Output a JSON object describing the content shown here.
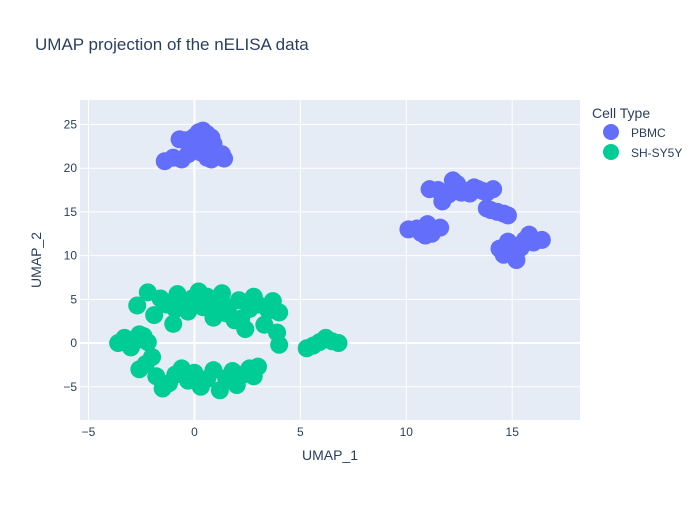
{
  "chart_data": {
    "type": "scatter",
    "title": "UMAP projection of the nELISA data",
    "xlabel": "UMAP_1",
    "ylabel": "UMAP_2",
    "xlim": [
      -5.4,
      18.2
    ],
    "ylim": [
      -8.8,
      27.8
    ],
    "xticks": [
      -5,
      0,
      5,
      10,
      15
    ],
    "yticks": [
      -5,
      0,
      5,
      10,
      15,
      20,
      25
    ],
    "grid": true,
    "legend": {
      "title": "Cell Type",
      "placement": "top-right"
    },
    "series": [
      {
        "name": "PBMC",
        "color": "#636efa",
        "points": [
          [
            -1.4,
            20.8
          ],
          [
            -1.0,
            21.2
          ],
          [
            -0.6,
            21.0
          ],
          [
            -0.3,
            21.6
          ],
          [
            0.0,
            22.0
          ],
          [
            0.3,
            21.8
          ],
          [
            0.6,
            21.2
          ],
          [
            0.8,
            21.0
          ],
          [
            1.0,
            21.4
          ],
          [
            1.3,
            21.6
          ],
          [
            1.4,
            21.1
          ],
          [
            -0.7,
            23.3
          ],
          [
            -0.4,
            23.2
          ],
          [
            -0.2,
            22.6
          ],
          [
            0.0,
            23.6
          ],
          [
            0.2,
            24.1
          ],
          [
            0.4,
            24.3
          ],
          [
            0.6,
            23.9
          ],
          [
            0.8,
            23.5
          ],
          [
            0.9,
            22.8
          ],
          [
            0.5,
            22.3
          ],
          [
            0.2,
            22.8
          ],
          [
            -0.1,
            22.2
          ],
          [
            0.7,
            22.0
          ],
          [
            10.1,
            13.0
          ],
          [
            10.5,
            13.1
          ],
          [
            10.7,
            12.6
          ],
          [
            10.9,
            12.3
          ],
          [
            11.0,
            13.6
          ],
          [
            11.2,
            12.5
          ],
          [
            11.6,
            13.2
          ],
          [
            11.1,
            17.6
          ],
          [
            11.5,
            17.5
          ],
          [
            11.7,
            16.2
          ],
          [
            12.0,
            17.0
          ],
          [
            12.2,
            18.6
          ],
          [
            12.4,
            18.2
          ],
          [
            12.6,
            17.2
          ],
          [
            12.8,
            17.4
          ],
          [
            13.0,
            17.1
          ],
          [
            13.2,
            17.8
          ],
          [
            13.4,
            17.6
          ],
          [
            13.6,
            17.4
          ],
          [
            13.8,
            17.2
          ],
          [
            14.1,
            17.6
          ],
          [
            13.8,
            15.4
          ],
          [
            14.0,
            15.2
          ],
          [
            14.3,
            15.0
          ],
          [
            14.6,
            14.8
          ],
          [
            14.8,
            14.6
          ],
          [
            14.4,
            10.8
          ],
          [
            14.6,
            10.1
          ],
          [
            14.8,
            11.6
          ],
          [
            15.0,
            11.2
          ],
          [
            15.1,
            10.4
          ],
          [
            15.2,
            9.5
          ],
          [
            15.4,
            10.9
          ],
          [
            15.6,
            11.8
          ],
          [
            15.8,
            12.4
          ],
          [
            16.0,
            11.5
          ],
          [
            16.4,
            11.8
          ]
        ]
      },
      {
        "name": "SH-SY5Y",
        "color": "#00cc96",
        "points": [
          [
            -3.6,
            0.0
          ],
          [
            -3.3,
            0.6
          ],
          [
            -3.0,
            -0.5
          ],
          [
            -2.8,
            0.2
          ],
          [
            -2.6,
            1.0
          ],
          [
            -2.4,
            0.8
          ],
          [
            -2.2,
            0.1
          ],
          [
            -2.7,
            4.3
          ],
          [
            -2.2,
            5.8
          ],
          [
            -1.9,
            3.2
          ],
          [
            -1.6,
            5.1
          ],
          [
            -1.3,
            4.4
          ],
          [
            -1.0,
            2.2
          ],
          [
            -0.8,
            5.6
          ],
          [
            -0.5,
            4.7
          ],
          [
            -0.3,
            3.6
          ],
          [
            -0.1,
            5.1
          ],
          [
            0.2,
            5.9
          ],
          [
            0.4,
            4.1
          ],
          [
            0.6,
            5.3
          ],
          [
            0.9,
            2.9
          ],
          [
            1.1,
            4.6
          ],
          [
            1.3,
            5.7
          ],
          [
            1.6,
            4.1
          ],
          [
            1.9,
            2.6
          ],
          [
            2.1,
            4.9
          ],
          [
            2.4,
            1.6
          ],
          [
            2.6,
            3.9
          ],
          [
            2.8,
            5.3
          ],
          [
            3.0,
            4.4
          ],
          [
            3.3,
            2.1
          ],
          [
            3.5,
            3.7
          ],
          [
            3.7,
            4.8
          ],
          [
            4.0,
            3.5
          ],
          [
            3.9,
            1.2
          ],
          [
            4.0,
            -0.2
          ],
          [
            2.2,
            2.8
          ],
          [
            1.5,
            3.4
          ],
          [
            -0.9,
            3.9
          ],
          [
            -2.6,
            -3.0
          ],
          [
            -2.3,
            -2.4
          ],
          [
            -2.0,
            -1.6
          ],
          [
            -1.8,
            -3.8
          ],
          [
            -1.5,
            -5.2
          ],
          [
            -1.2,
            -4.6
          ],
          [
            -0.9,
            -3.6
          ],
          [
            -0.6,
            -2.9
          ],
          [
            -0.3,
            -4.3
          ],
          [
            0.0,
            -3.4
          ],
          [
            0.3,
            -5.0
          ],
          [
            0.6,
            -4.1
          ],
          [
            0.9,
            -3.1
          ],
          [
            1.2,
            -5.4
          ],
          [
            1.5,
            -4.0
          ],
          [
            1.8,
            -3.2
          ],
          [
            2.0,
            -4.8
          ],
          [
            2.3,
            -3.6
          ],
          [
            2.6,
            -2.9
          ],
          [
            2.8,
            -3.8
          ],
          [
            3.0,
            -2.7
          ],
          [
            5.3,
            -0.6
          ],
          [
            5.6,
            -0.3
          ],
          [
            5.9,
            0.1
          ],
          [
            6.2,
            0.6
          ],
          [
            6.5,
            0.2
          ],
          [
            6.8,
            0.0
          ]
        ]
      }
    ]
  }
}
